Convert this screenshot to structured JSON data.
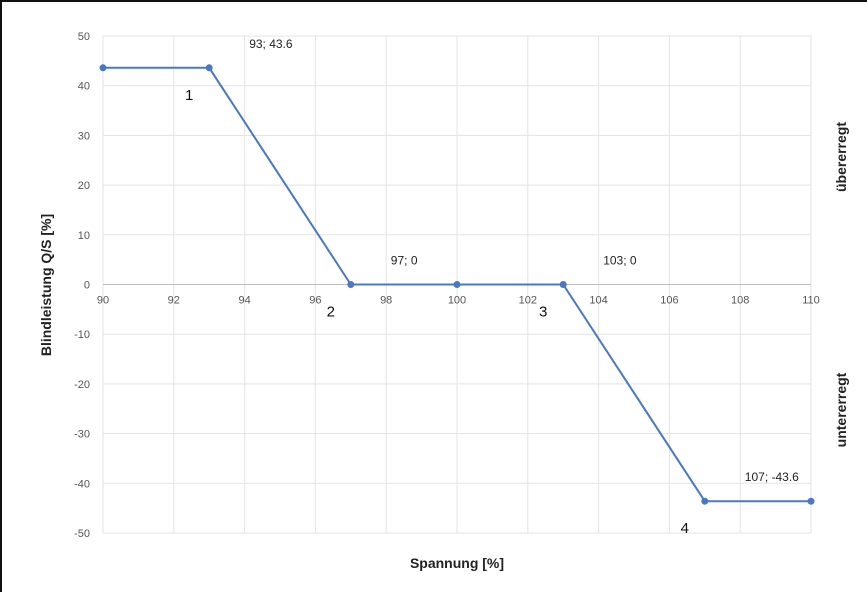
{
  "chart_data": {
    "type": "line",
    "xlabel": "Spannung [%]",
    "ylabel": "Blindleistung Q/S [%]",
    "xlim": [
      90,
      110
    ],
    "ylim": [
      -50,
      50
    ],
    "x_ticks": [
      "90",
      "92",
      "94",
      "96",
      "98",
      "100",
      "102",
      "104",
      "106",
      "108",
      "110"
    ],
    "y_ticks": [
      "50",
      "40",
      "30",
      "20",
      "10",
      "0",
      "-10",
      "-20",
      "-30",
      "-40",
      "-50"
    ],
    "grid": true,
    "series": [
      {
        "color": "#4a78c2",
        "x": [
          90,
          93,
          97,
          100,
          103,
          107,
          110
        ],
        "y": [
          43.6,
          43.6,
          0,
          0,
          0,
          -43.6,
          -43.6
        ]
      }
    ],
    "data_labels": [
      {
        "x": 93,
        "y": 43.6,
        "text": "93; 43.6"
      },
      {
        "x": 97,
        "y": 0,
        "text": "97; 0"
      },
      {
        "x": 103,
        "y": 0,
        "text": "103; 0"
      },
      {
        "x": 107,
        "y": -43.6,
        "text": "107; -43.6"
      }
    ],
    "point_labels": [
      {
        "x": 93,
        "y": 43.6,
        "text": "1"
      },
      {
        "x": 97,
        "y": 0,
        "text": "2"
      },
      {
        "x": 103,
        "y": 0,
        "text": "3"
      },
      {
        "x": 107,
        "y": -43.6,
        "text": "4"
      }
    ],
    "region_labels": {
      "upper": "übererregt",
      "lower": "untererregt"
    }
  }
}
